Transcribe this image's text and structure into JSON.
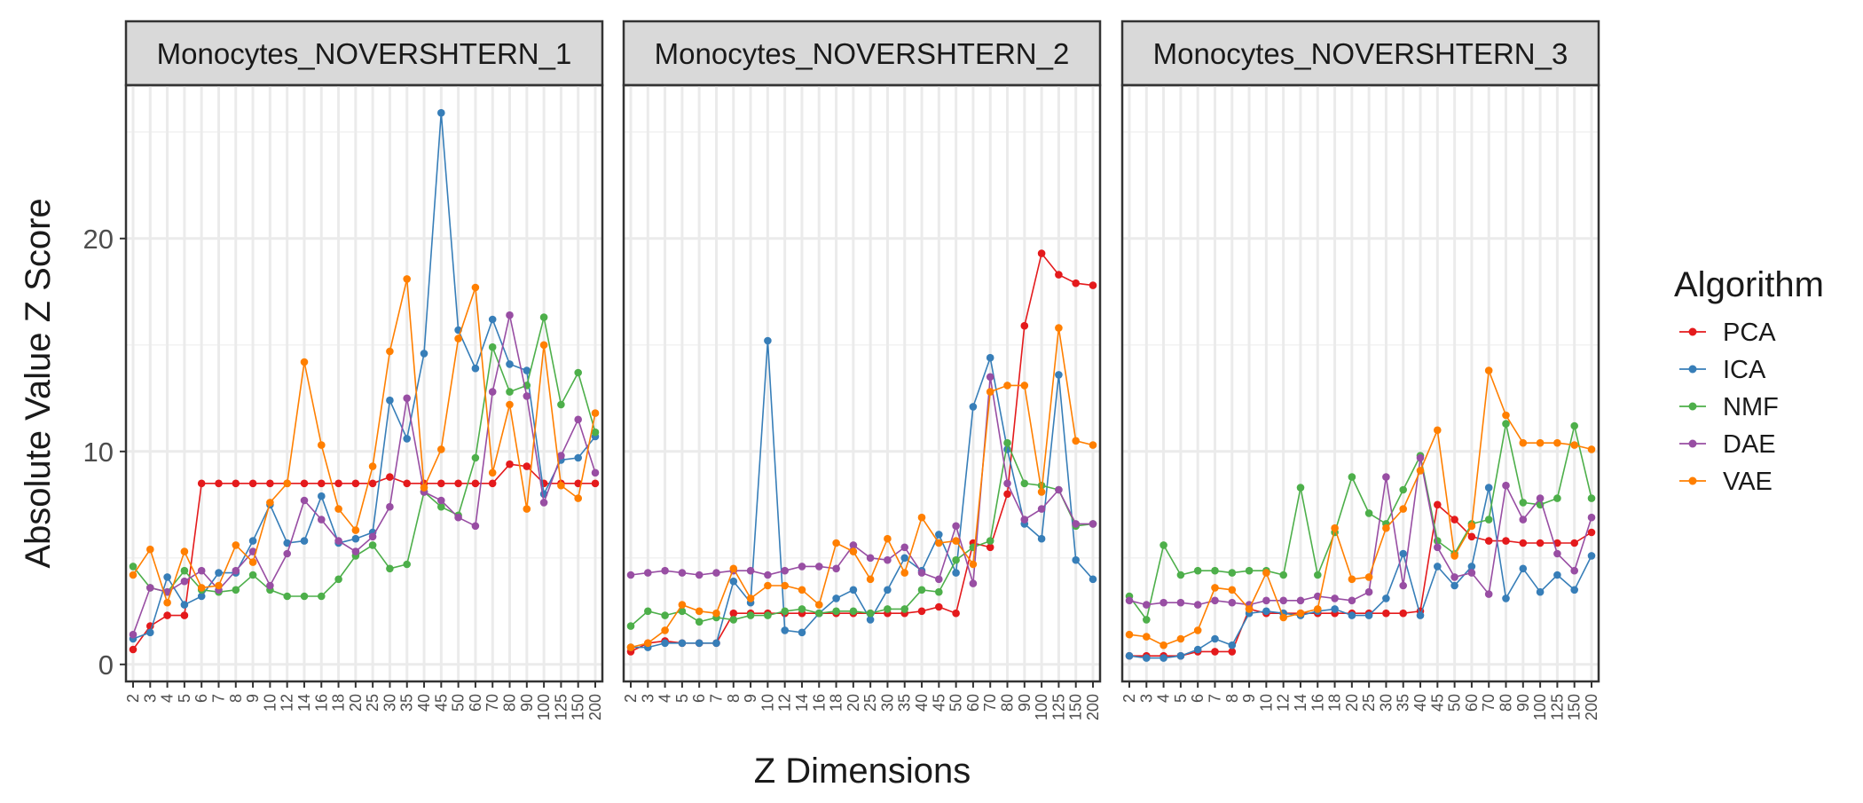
{
  "chart_data": {
    "type": "line",
    "xlabel": "Z Dimensions",
    "ylabel": "Absolute Value Z Score",
    "ylim": [
      -0.8,
      27.2
    ],
    "yticks": [
      0,
      10,
      20
    ],
    "grid": true,
    "legend": {
      "title": "Algorithm",
      "position": "right"
    },
    "categories": [
      "2",
      "3",
      "4",
      "5",
      "6",
      "7",
      "8",
      "9",
      "10",
      "12",
      "14",
      "16",
      "18",
      "20",
      "25",
      "30",
      "35",
      "40",
      "45",
      "50",
      "60",
      "70",
      "80",
      "90",
      "100",
      "125",
      "150",
      "200"
    ],
    "colors": {
      "PCA": "#e41a1c",
      "ICA": "#377eb8",
      "NMF": "#4daf4a",
      "DAE": "#984ea3",
      "VAE": "#ff7f00"
    },
    "panels": [
      {
        "title": "Monocytes_NOVERSHTERN_1",
        "series": [
          {
            "name": "PCA",
            "values": [
              0.7,
              1.8,
              2.3,
              2.3,
              8.5,
              8.5,
              8.5,
              8.5,
              8.5,
              8.5,
              8.5,
              8.5,
              8.5,
              8.5,
              8.5,
              8.8,
              8.5,
              8.5,
              8.5,
              8.5,
              8.5,
              8.5,
              9.4,
              9.3,
              8.5,
              8.5,
              8.5,
              8.5
            ]
          },
          {
            "name": "ICA",
            "values": [
              1.2,
              1.5,
              4.1,
              2.8,
              3.2,
              4.3,
              4.3,
              5.8,
              7.5,
              5.7,
              5.8,
              7.9,
              5.7,
              5.9,
              6.2,
              12.4,
              10.6,
              14.6,
              25.9,
              15.7,
              13.9,
              16.2,
              14.1,
              13.8,
              8.0,
              9.6,
              9.7,
              10.7
            ]
          },
          {
            "name": "NMF",
            "values": [
              4.6,
              3.6,
              3.4,
              4.4,
              3.5,
              3.4,
              3.5,
              4.2,
              3.5,
              3.2,
              3.2,
              3.2,
              4.0,
              5.1,
              5.6,
              4.5,
              4.7,
              8.1,
              7.4,
              7.0,
              9.7,
              14.9,
              12.8,
              13.1,
              16.3,
              12.2,
              13.7,
              10.9
            ]
          },
          {
            "name": "DAE",
            "values": [
              1.4,
              3.6,
              3.4,
              3.9,
              4.4,
              3.5,
              4.4,
              5.3,
              3.7,
              5.2,
              7.7,
              6.8,
              5.8,
              5.3,
              6.0,
              7.4,
              12.5,
              8.1,
              7.7,
              6.9,
              6.5,
              12.8,
              16.4,
              12.6,
              7.6,
              9.8,
              11.5,
              9.0
            ]
          },
          {
            "name": "VAE",
            "values": [
              4.2,
              5.4,
              2.9,
              5.3,
              3.6,
              3.7,
              5.6,
              4.8,
              7.6,
              8.5,
              14.2,
              10.3,
              7.3,
              6.3,
              9.3,
              14.7,
              18.1,
              8.3,
              10.1,
              15.3,
              17.7,
              9.0,
              12.2,
              7.3,
              15.0,
              8.4,
              7.8,
              11.8
            ]
          }
        ]
      },
      {
        "title": "Monocytes_NOVERSHTERN_2",
        "series": [
          {
            "name": "PCA",
            "values": [
              0.6,
              1.0,
              1.1,
              1.0,
              1.0,
              1.0,
              2.4,
              2.4,
              2.4,
              2.4,
              2.4,
              2.4,
              2.4,
              2.4,
              2.4,
              2.4,
              2.4,
              2.5,
              2.7,
              2.4,
              5.7,
              5.5,
              8.0,
              15.9,
              19.3,
              18.3,
              17.9,
              17.8
            ]
          },
          {
            "name": "ICA",
            "values": [
              0.8,
              0.8,
              1.0,
              1.0,
              1.0,
              1.0,
              3.9,
              2.9,
              15.2,
              1.6,
              1.5,
              2.4,
              3.1,
              3.5,
              2.1,
              3.5,
              5.0,
              4.4,
              6.1,
              4.3,
              12.1,
              14.4,
              10.1,
              6.6,
              5.9,
              13.6,
              4.9,
              4.0
            ]
          },
          {
            "name": "NMF",
            "values": [
              1.8,
              2.5,
              2.3,
              2.5,
              2.0,
              2.2,
              2.1,
              2.3,
              2.3,
              2.5,
              2.6,
              2.4,
              2.5,
              2.5,
              2.4,
              2.6,
              2.6,
              3.5,
              3.4,
              4.9,
              5.5,
              5.8,
              10.4,
              8.5,
              8.4,
              8.2,
              6.5,
              6.6
            ]
          },
          {
            "name": "DAE",
            "values": [
              4.2,
              4.3,
              4.4,
              4.3,
              4.2,
              4.3,
              4.4,
              4.4,
              4.2,
              4.4,
              4.6,
              4.6,
              4.5,
              5.6,
              5.0,
              4.9,
              5.5,
              4.3,
              4.0,
              6.5,
              3.8,
              13.5,
              8.5,
              6.8,
              7.3,
              8.2,
              6.6,
              6.6
            ]
          },
          {
            "name": "VAE",
            "values": [
              0.8,
              1.0,
              1.6,
              2.8,
              2.5,
              2.4,
              4.5,
              3.1,
              3.7,
              3.7,
              3.5,
              2.8,
              5.7,
              5.3,
              4.0,
              5.9,
              4.3,
              6.9,
              5.7,
              5.8,
              4.7,
              12.8,
              13.1,
              13.1,
              8.1,
              15.8,
              10.5,
              10.3
            ]
          }
        ]
      },
      {
        "title": "Monocytes_NOVERSHTERN_3",
        "series": [
          {
            "name": "PCA",
            "values": [
              0.4,
              0.4,
              0.4,
              0.4,
              0.6,
              0.6,
              0.6,
              2.6,
              2.4,
              2.4,
              2.4,
              2.4,
              2.4,
              2.4,
              2.4,
              2.4,
              2.4,
              2.5,
              7.5,
              6.8,
              6.0,
              5.8,
              5.8,
              5.7,
              5.7,
              5.7,
              5.7,
              6.2
            ]
          },
          {
            "name": "ICA",
            "values": [
              0.4,
              0.3,
              0.3,
              0.4,
              0.7,
              1.2,
              0.9,
              2.4,
              2.5,
              2.4,
              2.3,
              2.5,
              2.6,
              2.3,
              2.3,
              3.1,
              5.2,
              2.3,
              4.6,
              3.7,
              4.6,
              8.3,
              3.1,
              4.5,
              3.4,
              4.2,
              3.5,
              5.1
            ]
          },
          {
            "name": "NMF",
            "values": [
              3.2,
              2.1,
              5.6,
              4.2,
              4.4,
              4.4,
              4.3,
              4.4,
              4.4,
              4.2,
              8.3,
              4.2,
              6.2,
              8.8,
              7.1,
              6.6,
              8.2,
              9.8,
              5.8,
              5.2,
              6.6,
              6.8,
              11.3,
              7.6,
              7.5,
              7.8,
              11.2,
              7.8
            ]
          },
          {
            "name": "DAE",
            "values": [
              3.0,
              2.8,
              2.9,
              2.9,
              2.8,
              3.0,
              2.9,
              2.8,
              3.0,
              3.0,
              3.0,
              3.2,
              3.1,
              3.0,
              3.4,
              8.8,
              3.7,
              9.7,
              5.5,
              4.1,
              4.3,
              3.3,
              8.4,
              6.8,
              7.8,
              5.2,
              4.4,
              6.9
            ]
          },
          {
            "name": "VAE",
            "values": [
              1.4,
              1.3,
              0.9,
              1.2,
              1.6,
              3.6,
              3.5,
              2.6,
              4.3,
              2.2,
              2.4,
              2.6,
              6.4,
              4.0,
              4.1,
              6.4,
              7.3,
              9.1,
              11.0,
              5.1,
              6.5,
              13.8,
              11.7,
              10.4,
              10.4,
              10.4,
              10.3,
              10.1
            ]
          }
        ]
      }
    ]
  }
}
